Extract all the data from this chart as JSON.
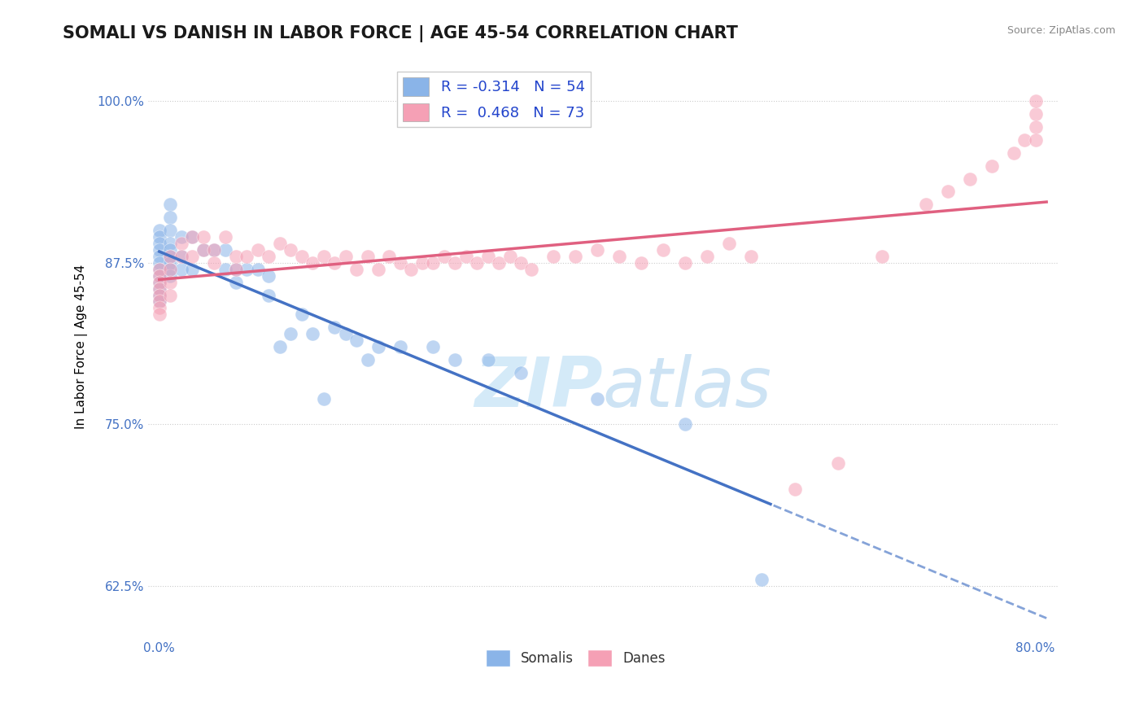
{
  "title": "SOMALI VS DANISH IN LABOR FORCE | AGE 45-54 CORRELATION CHART",
  "ylabel": "In Labor Force | Age 45-54",
  "source_text": "Source: ZipAtlas.com",
  "x_ticks": [
    0.0,
    0.1,
    0.2,
    0.3,
    0.4,
    0.5,
    0.6,
    0.7,
    0.8
  ],
  "y_ticks": [
    0.625,
    0.75,
    0.875,
    1.0
  ],
  "y_tick_labels": [
    "62.5%",
    "75.0%",
    "87.5%",
    "100.0%"
  ],
  "xlim": [
    -0.01,
    0.82
  ],
  "ylim": [
    0.585,
    1.035
  ],
  "somali_R": -0.314,
  "somali_N": 54,
  "danes_R": 0.468,
  "danes_N": 73,
  "somali_color": "#8ab4e8",
  "danes_color": "#f5a0b5",
  "somali_line_color": "#4472c4",
  "danes_line_color": "#e06080",
  "background_color": "#ffffff",
  "grid_color": "#cccccc",
  "watermark_color": "#d0e8f8",
  "title_fontsize": 15,
  "axis_label_fontsize": 11,
  "tick_fontsize": 11,
  "legend_fontsize": 13
}
